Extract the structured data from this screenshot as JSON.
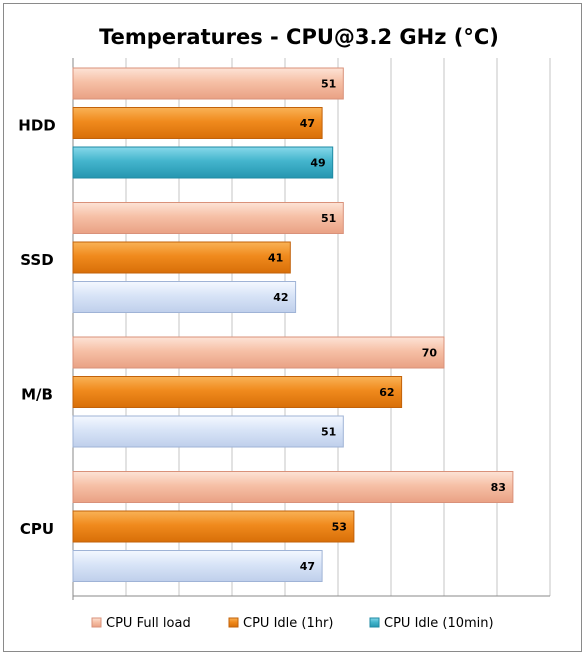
{
  "chart_data": {
    "type": "bar",
    "orientation": "horizontal",
    "title": "Temperatures - CPU@3.2 GHz (°C)",
    "categories": [
      "HDD",
      "SSD",
      "M/B",
      "CPU"
    ],
    "series": [
      {
        "name": "CPU Full load",
        "values": [
          51,
          51,
          70,
          83
        ],
        "color": "#f4b79a"
      },
      {
        "name": "CPU Idle (1hr)",
        "values": [
          47,
          41,
          62,
          53
        ],
        "color": "#f28a1c"
      },
      {
        "name": "CPU Idle (10min)",
        "values": [
          49,
          42,
          51,
          47
        ],
        "color": "#3fb4cc"
      }
    ],
    "xlim": [
      0,
      90
    ],
    "grid": true,
    "legend_position": "bottom",
    "highlight": {
      "category": "HDD",
      "series": "CPU Idle (10min)"
    },
    "muted_color": "#d3e0f6"
  }
}
